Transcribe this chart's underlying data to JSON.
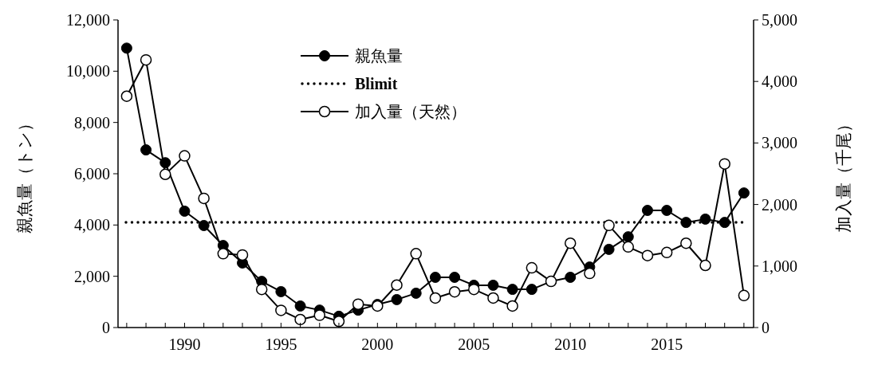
{
  "chart_data": {
    "type": "line",
    "x": [
      1987,
      1988,
      1989,
      1990,
      1991,
      1992,
      1993,
      1994,
      1995,
      1996,
      1997,
      1998,
      1999,
      2000,
      2001,
      2002,
      2003,
      2004,
      2005,
      2006,
      2007,
      2008,
      2009,
      2010,
      2011,
      2012,
      2013,
      2014,
      2015,
      2016,
      2017,
      2018,
      2019
    ],
    "series": [
      {
        "name": "親魚量",
        "color": "#000000",
        "marker": "circle",
        "values": [
          10900,
          6930,
          6430,
          4540,
          3980,
          3200,
          2520,
          1800,
          1400,
          840,
          680,
          440,
          680,
          900,
          1090,
          1340,
          1960,
          1960,
          1650,
          1650,
          1490,
          1490,
          1800,
          1960,
          2360,
          3050,
          3540,
          4570,
          4570,
          4100,
          4230,
          4100,
          5250
        ]
      },
      {
        "name": "加入量（天然）",
        "color": "#000000",
        "marker": "circle_open",
        "axis": "y2",
        "values": [
          3760,
          4350,
          2490,
          2790,
          2100,
          1200,
          1180,
          620,
          280,
          130,
          200,
          100,
          380,
          350,
          690,
          1200,
          480,
          580,
          620,
          480,
          350,
          970,
          750,
          1370,
          880,
          1660,
          1310,
          1170,
          1220,
          1370,
          1010,
          2660,
          520
        ]
      }
    ],
    "ref_lines": [
      {
        "axis": "y",
        "value": 4100,
        "label": "Blimit",
        "line_style": "dotted",
        "color": "#000000"
      }
    ],
    "xlim": [
      1986.55,
      2019.5
    ],
    "xticks": [
      {
        "value": 1987,
        "label": null
      },
      {
        "value": 1988,
        "label": null
      },
      {
        "value": 1989,
        "label": null
      },
      1990,
      {
        "value": 1991,
        "label": null
      },
      {
        "value": 1992,
        "label": null
      },
      {
        "value": 1993,
        "label": null
      },
      {
        "value": 1994,
        "label": null
      },
      1995,
      {
        "value": 1996,
        "label": null
      },
      {
        "value": 1997,
        "label": null
      },
      {
        "value": 1998,
        "label": null
      },
      {
        "value": 1999,
        "label": null
      },
      2000,
      {
        "value": 2001,
        "label": null
      },
      {
        "value": 2002,
        "label": null
      },
      {
        "value": 2003,
        "label": null
      },
      {
        "value": 2004,
        "label": null
      },
      2005,
      {
        "value": 2006,
        "label": null
      },
      {
        "value": 2007,
        "label": null
      },
      {
        "value": 2008,
        "label": null
      },
      {
        "value": 2009,
        "label": null
      },
      2010,
      {
        "value": 2011,
        "label": null
      },
      {
        "value": 2012,
        "label": null
      },
      {
        "value": 2013,
        "label": null
      },
      {
        "value": 2014,
        "label": null
      },
      2015,
      {
        "value": 2016,
        "label": null
      },
      {
        "value": 2017,
        "label": null
      },
      {
        "value": 2018,
        "label": null
      },
      {
        "value": 2019,
        "label": null
      }
    ],
    "ylim": [
      0,
      12000
    ],
    "yticks": [
      {
        "value": 0,
        "label": "0"
      },
      {
        "value": 2000,
        "label": "2,000"
      },
      {
        "value": 4000,
        "label": "4,000"
      },
      {
        "value": 6000,
        "label": "6,000"
      },
      {
        "value": 8000,
        "label": "8,000"
      },
      {
        "value": 10000,
        "label": "10,000"
      },
      {
        "value": 12000,
        "label": "12,000"
      }
    ],
    "y2lim": [
      0,
      5000
    ],
    "y2ticks": [
      {
        "value": 0,
        "label": "0"
      },
      {
        "value": 1000,
        "label": "1,000"
      },
      {
        "value": 2000,
        "label": "2,000"
      },
      {
        "value": 3000,
        "label": "3,000"
      },
      {
        "value": 4000,
        "label": "4,000"
      },
      {
        "value": 5000,
        "label": "5,000"
      }
    ],
    "ylabel": "親魚量（トン）",
    "y2label": "加入量（千尾）",
    "legend": "top",
    "grid": false,
    "line_style": "solid"
  }
}
